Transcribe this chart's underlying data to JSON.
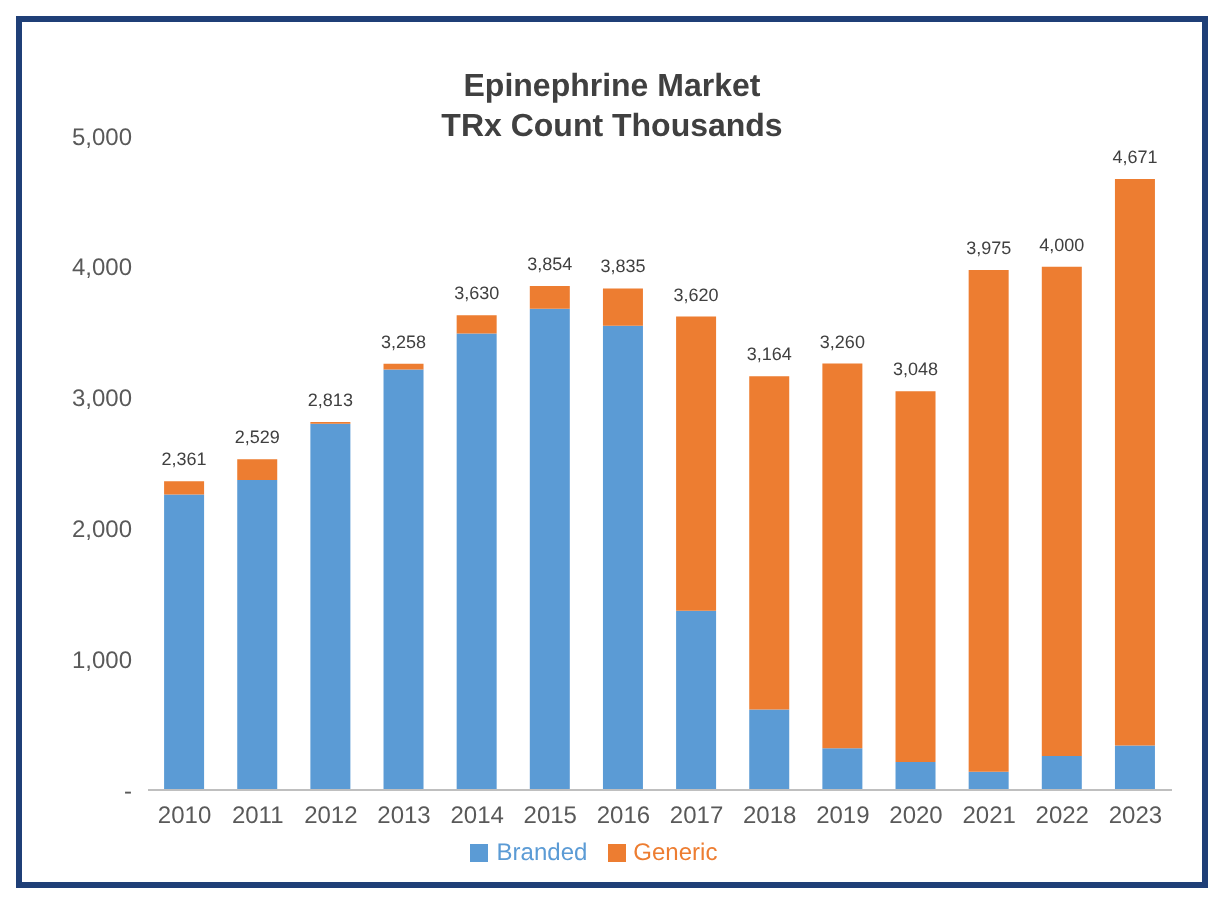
{
  "chart_data": {
    "type": "bar",
    "title": "Epinephrine Market\nTRx Count Thousands",
    "stacked": true,
    "categories": [
      "2010",
      "2011",
      "2012",
      "2013",
      "2014",
      "2015",
      "2016",
      "2017",
      "2018",
      "2019",
      "2020",
      "2021",
      "2022",
      "2023"
    ],
    "series": [
      {
        "name": "Branded",
        "color": "#5b9bd5",
        "values": [
          2260,
          2370,
          2800,
          3215,
          3490,
          3680,
          3550,
          1370,
          615,
          320,
          215,
          140,
          260,
          340
        ]
      },
      {
        "name": "Generic",
        "color": "#ed7d31",
        "values": [
          101,
          159,
          13,
          43,
          140,
          174,
          285,
          2250,
          2549,
          2940,
          2833,
          3835,
          3740,
          4331
        ]
      }
    ],
    "totals": [
      "2,361",
      "2,529",
      "2,813",
      "3,258",
      "3,630",
      "3,854",
      "3,835",
      "3,620",
      "3,164",
      "3,260",
      "3,048",
      "3,975",
      "4,000",
      "4,671"
    ],
    "ylim": [
      0,
      5000
    ],
    "yticks": [
      {
        "value": 0,
        "label": "-"
      },
      {
        "value": 1000,
        "label": "1,000"
      },
      {
        "value": 2000,
        "label": "2,000"
      },
      {
        "value": 3000,
        "label": "3,000"
      },
      {
        "value": 4000,
        "label": "4,000"
      },
      {
        "value": 5000,
        "label": "5,000"
      }
    ],
    "grid": false,
    "legend": "bottom"
  }
}
